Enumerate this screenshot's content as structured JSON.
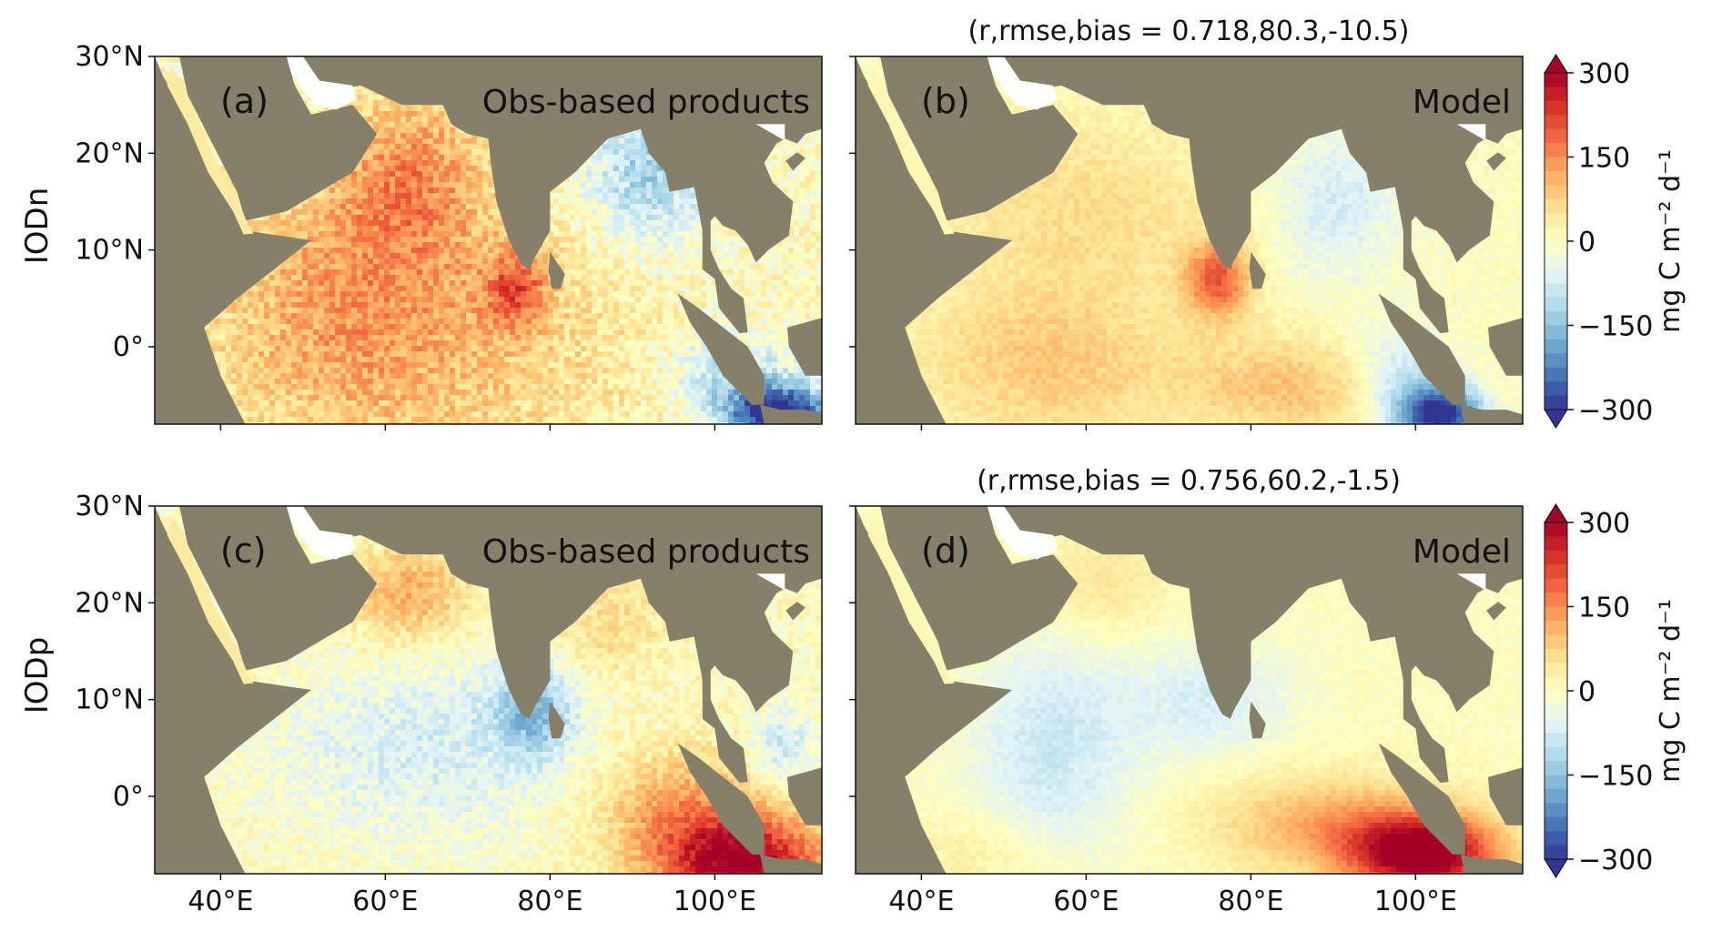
{
  "figure": {
    "row_labels": [
      "IODn",
      "IODp"
    ],
    "panels": [
      {
        "id": "a",
        "tag": "(a)",
        "title": "Obs-based products",
        "stats": "",
        "pattern": "obs_n"
      },
      {
        "id": "b",
        "tag": "(b)",
        "title": "Model",
        "stats": "(r,rmse,bias = 0.718,80.3,-10.5)",
        "pattern": "model_n"
      },
      {
        "id": "c",
        "tag": "(c)",
        "title": "Obs-based products",
        "stats": "",
        "pattern": "obs_p"
      },
      {
        "id": "d",
        "tag": "(d)",
        "title": "Model",
        "stats": "(r,rmse,bias = 0.756,60.2,-1.5)",
        "pattern": "model_p"
      }
    ],
    "lat_ticks": [
      "30°N",
      "20°N",
      "10°N",
      "0°"
    ],
    "lon_ticks": [
      "40°E",
      "60°E",
      "80°E",
      "100°E"
    ],
    "map_extent": {
      "lon": [
        32,
        113
      ],
      "lat": [
        -8,
        30
      ]
    },
    "lat_tick_values": [
      30,
      20,
      10,
      0
    ],
    "lon_tick_values": [
      40,
      60,
      80,
      100
    ],
    "colorbar": {
      "label": "mg C m⁻² d⁻¹",
      "ticks": [
        "300",
        "150",
        "0",
        "−150",
        "−300"
      ],
      "tick_values": [
        300,
        150,
        0,
        -150,
        -300
      ],
      "range": [
        -300,
        300
      ],
      "extend": "both",
      "colors": [
        "#313695",
        "#4575b4",
        "#74add1",
        "#abd9e9",
        "#e0f3f8",
        "#ffffbf",
        "#fee090",
        "#fdae61",
        "#f46d43",
        "#d73027",
        "#a50026"
      ]
    },
    "land_color": "#86806b"
  }
}
